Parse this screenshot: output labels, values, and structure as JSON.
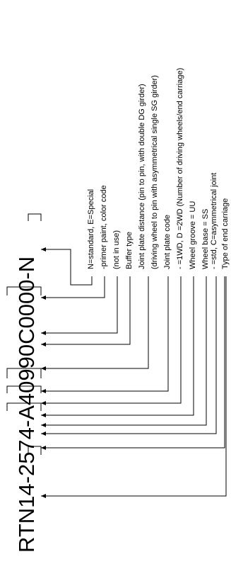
{
  "code": "RTN14-2574-A40990C0000-N",
  "line_color": "#000000",
  "text_color": "#000000",
  "descriptions": [
    "N=standard, E=Special",
    "-primer paint, color code",
    "(not in use)",
    "Buffer type",
    "Joint plate distance (pin to pin, with double DG girder)",
    "(driving wheel to pin with asymmetrical single SG girder)",
    "Joint plate code",
    "- =1WD, D =2WD (Number of driving wheels/end carriage)",
    "Wheel groove = UU",
    "Wheel base   = SS",
    "- =std, C=asymmetrical joint",
    "Type of end carriage"
  ]
}
